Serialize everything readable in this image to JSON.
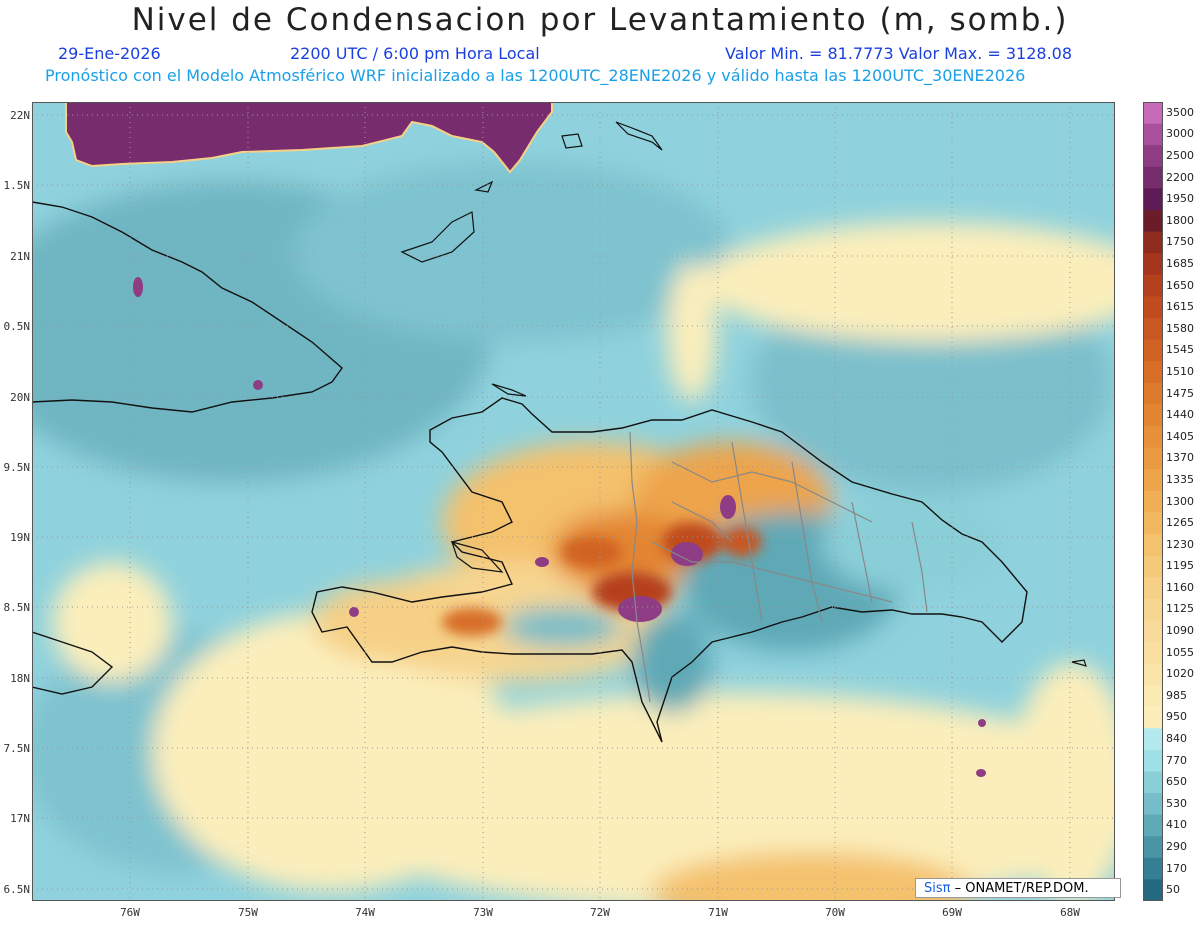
{
  "header": {
    "title": "Nivel de Condensacion por Levantamiento (m, somb.)",
    "date": "29-Ene-2026",
    "time": "2200 UTC / 6:00 pm Hora Local",
    "minmax": "Valor Min. = 81.7773  Valor Max. = 3128.08",
    "description": "Pronóstico con el Modelo Atmosférico WRF inicializado a las 1200UTC_28ENE2026 y válido hasta las  1200UTC_30ENE2026"
  },
  "axes": {
    "y_labels": [
      "22N",
      "1.5N",
      "21N",
      "0.5N",
      "20N",
      "9.5N",
      "19N",
      "8.5N",
      "18N",
      "7.5N",
      "17N",
      "6.5N"
    ],
    "x_labels": [
      "76W",
      "75W",
      "74W",
      "73W",
      "72W",
      "71W",
      "70W",
      "69W",
      "68W"
    ]
  },
  "colorbar": {
    "labels": [
      "3500",
      "3000",
      "2500",
      "2200",
      "1950",
      "1800",
      "1750",
      "1685",
      "1650",
      "1615",
      "1580",
      "1545",
      "1510",
      "1475",
      "1440",
      "1405",
      "1370",
      "1335",
      "1300",
      "1265",
      "1230",
      "1195",
      "1160",
      "1125",
      "1090",
      "1055",
      "1020",
      "985",
      "950",
      "840",
      "770",
      "650",
      "530",
      "410",
      "290",
      "170",
      "50"
    ],
    "colors": [
      "#c76bb8",
      "#a9509d",
      "#8e3d85",
      "#772c6e",
      "#5e1b55",
      "#6b1c2a",
      "#8e2a1e",
      "#a5361d",
      "#b5401d",
      "#c04b1f",
      "#c95722",
      "#d06224",
      "#d76d27",
      "#de7a2c",
      "#e38532",
      "#e79039",
      "#ea9a41",
      "#eda44b",
      "#f0ae55",
      "#f2b861",
      "#f4c16d",
      "#f5c97a",
      "#f6d086",
      "#f7d691",
      "#f8db9a",
      "#f9e0a2",
      "#fae4aa",
      "#faeab2",
      "#fbeebb",
      "#b3e9ef",
      "#9fdfe6",
      "#8acfd8",
      "#75bdc8",
      "#5fa9b7",
      "#4a94a6",
      "#357e93",
      "#23697f"
    ]
  },
  "credit": {
    "sis": "Sisπ",
    "org": "– ONAMET/REP.DOM."
  }
}
